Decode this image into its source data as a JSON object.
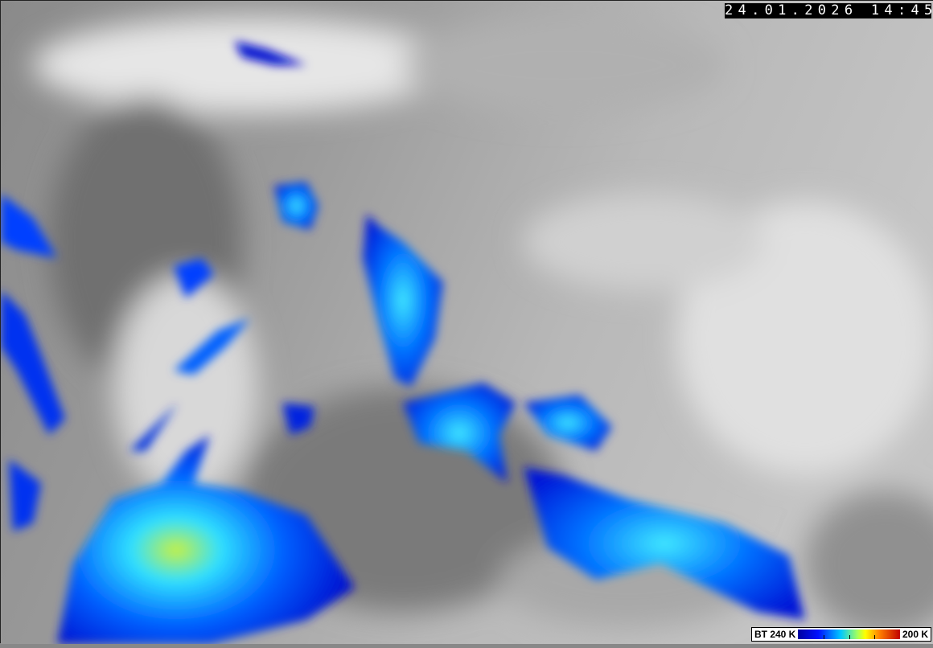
{
  "overlay": {
    "timestamp": "24.01.2026 14:45"
  },
  "legend": {
    "min_label": "BT 240 K",
    "max_label": "200 K",
    "colors": [
      "#0000a0",
      "#0010ff",
      "#00c8ff",
      "#a0ff60",
      "#ffff00",
      "#ff8000",
      "#c00000"
    ]
  },
  "image": {
    "type": "satellite infrared brightness temperature",
    "background_colors": [
      "#6f6f6f",
      "#9a9a9a",
      "#c8c8c8",
      "#e6e6e6"
    ]
  }
}
